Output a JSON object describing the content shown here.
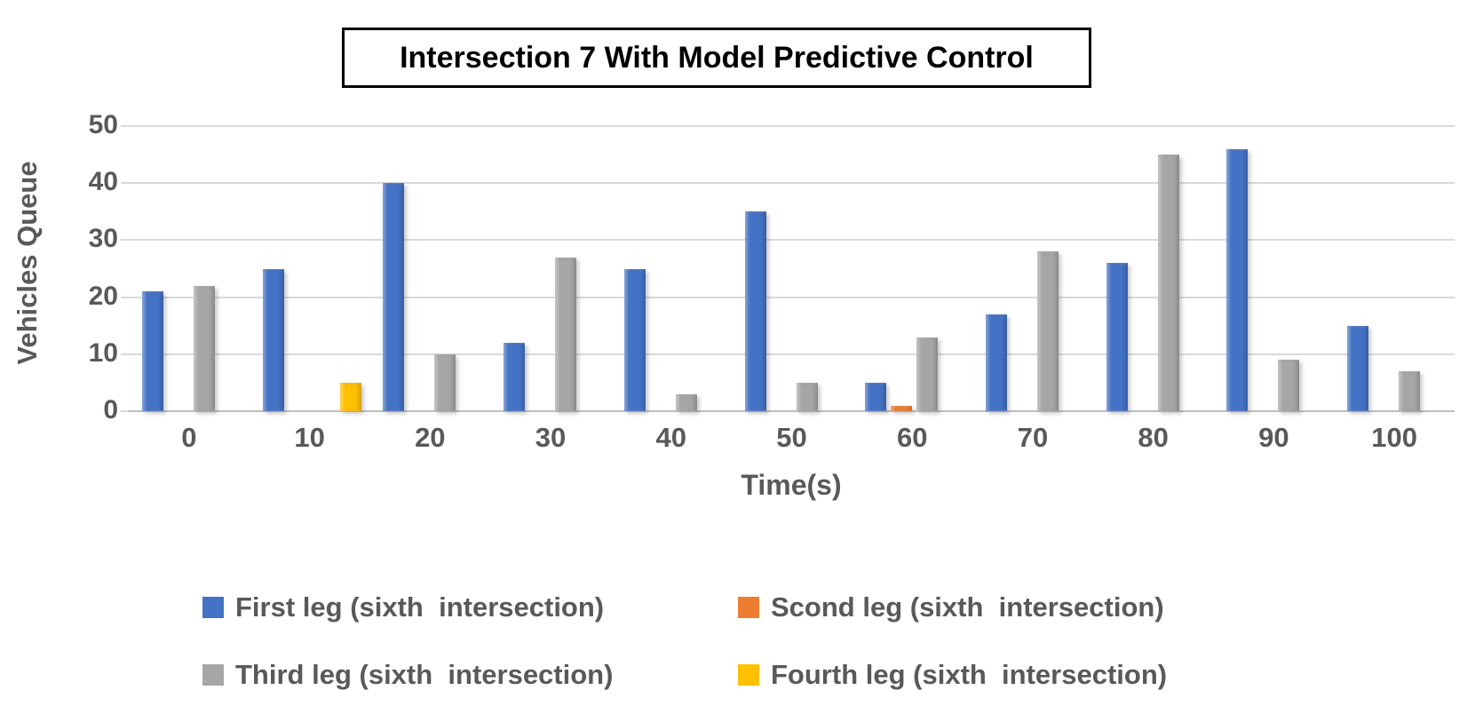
{
  "title": {
    "text": "Intersection 7 With Model Predictive Control"
  },
  "y_axis": {
    "label": "Vehicles Queue",
    "ticks": [
      50,
      40,
      30,
      20,
      10,
      0
    ],
    "max": 50
  },
  "x_axis": {
    "label": "Time(s)",
    "ticks": [
      "0",
      "10",
      "20",
      "30",
      "40",
      "50",
      "60",
      "70",
      "80",
      "90",
      "100"
    ]
  },
  "colors": {
    "first_leg": "#4472C4",
    "second_leg": "#ED7D31",
    "third_leg": "#A6A6A6",
    "fourth_leg": "#FFC000",
    "gridline": "#D9D9D9",
    "axis_text": "#595959",
    "title_text": "#000000"
  },
  "chart_data": {
    "type": "bar",
    "title": "Intersection 7 With Model Predictive Control",
    "xlabel": "Time(s)",
    "ylabel": "Vehicles Queue",
    "categories": [
      0,
      10,
      20,
      30,
      40,
      50,
      60,
      70,
      80,
      90,
      100
    ],
    "series": [
      {
        "name": "First leg (sixth  intersection)",
        "color": "#4472C4",
        "values": [
          21,
          25,
          40,
          12,
          25,
          35,
          5,
          17,
          26,
          46,
          15
        ]
      },
      {
        "name": "Scond leg (sixth  intersection)",
        "color": "#ED7D31",
        "values": [
          0,
          0,
          0,
          0,
          0,
          0,
          1,
          0,
          0,
          0,
          0
        ]
      },
      {
        "name": "Third leg (sixth  intersection)",
        "color": "#A6A6A6",
        "values": [
          22,
          0,
          10,
          27,
          3,
          5,
          13,
          28,
          45,
          9,
          7
        ]
      },
      {
        "name": "Fourth leg (sixth  intersection)",
        "color": "#FFC000",
        "values": [
          0,
          5,
          0,
          0,
          0,
          0,
          0,
          0,
          0,
          0,
          0
        ]
      }
    ],
    "ylim": [
      0,
      50
    ],
    "grid": true,
    "legend_position": "bottom"
  },
  "legend": {
    "items": [
      {
        "label": "First leg (sixth  intersection)"
      },
      {
        "label": "Scond leg (sixth  intersection)"
      },
      {
        "label": "Third leg (sixth  intersection)"
      },
      {
        "label": "Fourth leg (sixth  intersection)"
      }
    ]
  }
}
